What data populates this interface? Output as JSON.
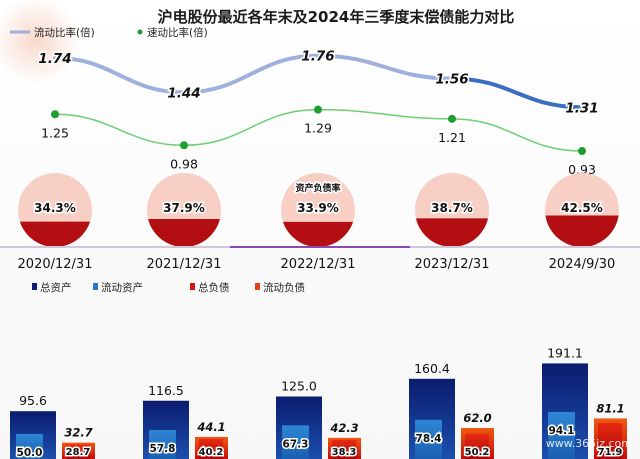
{
  "chart_data": [
    {
      "type": "line",
      "title": "沪电股份最近各年末及2024年三季度末偿债能力对比",
      "categories": [
        "2020/12/31",
        "2021/12/31",
        "2022/12/31",
        "2023/12/31",
        "2024/9/30"
      ],
      "series": [
        {
          "name": "流动比率(倍)",
          "values": [
            1.74,
            1.44,
            1.76,
            1.56,
            1.31
          ],
          "labels": [
            "1.74",
            "1.44",
            "1.76",
            "1.56",
            "1.31"
          ]
        },
        {
          "name": "速动比率(倍)",
          "values": [
            1.25,
            0.98,
            1.29,
            1.21,
            0.93
          ],
          "labels": [
            "1.25",
            "0.98",
            "1.29",
            "1.21",
            "0.93"
          ]
        }
      ],
      "legend_position": "top-left",
      "colors": {
        "current_ratio": "#9fb0dd",
        "current_ratio_last": "#3a6fc0",
        "quick_ratio": "#6dcf72",
        "quick_marker": "#1f9e2f"
      }
    },
    {
      "type": "pie",
      "indicator_label": "资产负债率",
      "categories": [
        "2020/12/31",
        "2021/12/31",
        "2022/12/31",
        "2023/12/31",
        "2024/9/30"
      ],
      "values": [
        34.3,
        37.9,
        33.9,
        38.7,
        42.5
      ],
      "labels": [
        "34.3%",
        "37.9%",
        "33.9%",
        "38.7%",
        "42.5%"
      ],
      "colors": {
        "filled": "#b30e12",
        "empty": "#f7cfc5"
      }
    },
    {
      "type": "bar",
      "categories": [
        "2020/12/31",
        "2021/12/31",
        "2022/12/31",
        "2023/12/31",
        "2024/9/30"
      ],
      "series": [
        {
          "name": "总资产",
          "values": [
            95.6,
            116.5,
            125.0,
            160.4,
            191.1
          ],
          "labels": [
            "95.6",
            "116.5",
            "125.0",
            "160.4",
            "191.1"
          ]
        },
        {
          "name": "流动资产",
          "values": [
            50.0,
            57.8,
            67.3,
            78.4,
            94.1
          ],
          "labels": [
            "50.0",
            "57.8",
            "67.3",
            "78.4",
            "94.1"
          ]
        },
        {
          "name": "总负债",
          "values": [
            32.7,
            44.1,
            42.3,
            62.0,
            81.1
          ],
          "labels": [
            "32.7",
            "44.1",
            "42.3",
            "62.0",
            "81.1"
          ]
        },
        {
          "name": "流动负债",
          "values": [
            28.7,
            40.2,
            38.3,
            50.2,
            71.9
          ],
          "labels": [
            "28.7",
            "40.2",
            "38.3",
            "50.2",
            "71.9"
          ]
        }
      ],
      "legend_position": "top-left",
      "colors": {
        "total_assets": "#0a1f7a",
        "current_assets": "#2a76c8",
        "total_liabilities": "#d8120f",
        "current_liabilities": "#e84018"
      }
    }
  ],
  "watermark": "www.365jz.com"
}
